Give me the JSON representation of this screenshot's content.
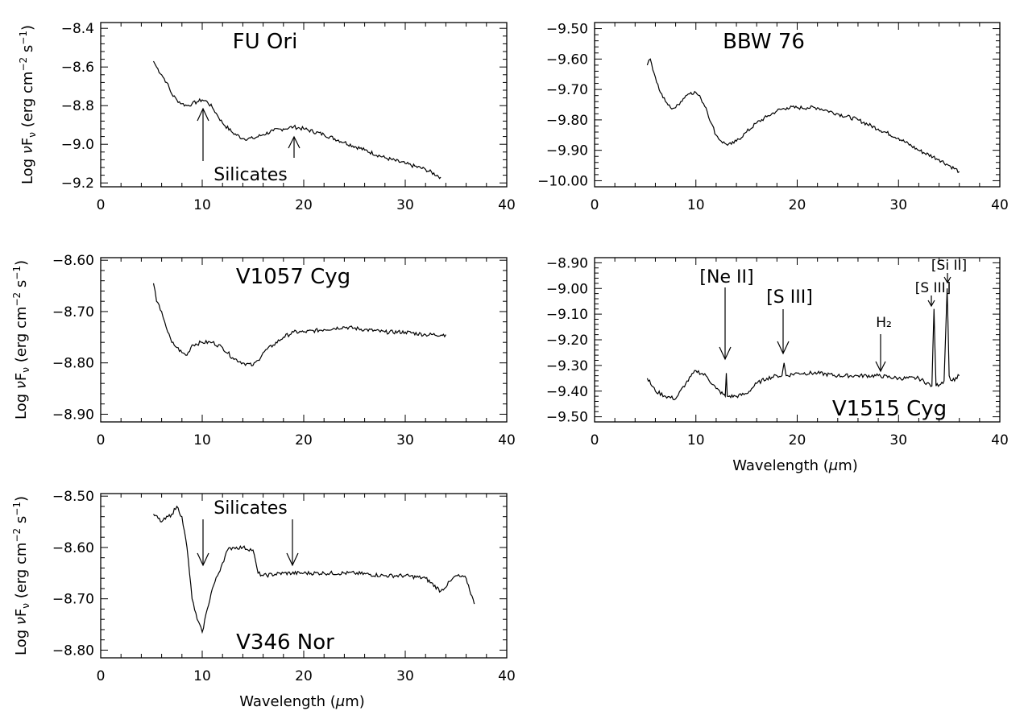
{
  "figure": {
    "xlabel_prefix": "Wavelength (",
    "xlabel_symbol": "μ",
    "xlabel_suffix": "m)",
    "ylabel_prefix": "Log ",
    "ylabel_nu": "ν",
    "ylabel_F": "F",
    "ylabel_sub": "ν",
    "ylabel_units_open": " (erg cm",
    "ylabel_exp1": "−2",
    "ylabel_units_mid": " s",
    "ylabel_exp2": "−1",
    "ylabel_units_close": ")"
  },
  "chart_data": [
    {
      "type": "line",
      "title": "FU Ori",
      "xlim": [
        0,
        40
      ],
      "ylim": [
        -9.22,
        -8.37
      ],
      "xticks": [
        0,
        10,
        20,
        30,
        40
      ],
      "yticks": [
        -9.2,
        -9.0,
        -8.8,
        -8.6,
        -8.4
      ],
      "ytick_labels": [
        "−9.2",
        "−9.0",
        "−8.8",
        "−8.6",
        "−8.4"
      ],
      "series": [
        {
          "x": [
            5.2,
            5.5,
            6.0,
            6.5,
            7.0,
            7.5,
            8.0,
            8.5,
            9.0,
            9.5,
            10.0,
            10.5,
            11.0,
            11.5,
            12.0,
            13.0,
            14.0,
            15.0,
            16.0,
            17.0,
            18.0,
            19.0,
            20.0,
            22.0,
            24.0,
            26.0,
            28.0,
            30.0,
            32.0,
            33.5
          ],
          "y": [
            -8.57,
            -8.6,
            -8.64,
            -8.68,
            -8.74,
            -8.77,
            -8.79,
            -8.8,
            -8.79,
            -8.78,
            -8.77,
            -8.78,
            -8.81,
            -8.85,
            -8.89,
            -8.94,
            -8.97,
            -8.97,
            -8.95,
            -8.93,
            -8.92,
            -8.91,
            -8.92,
            -8.95,
            -8.99,
            -9.03,
            -9.07,
            -9.1,
            -9.13,
            -9.17
          ]
        }
      ],
      "annotations": [
        {
          "text": "Silicates",
          "x": 14,
          "y": -9.16
        },
        {
          "text": "",
          "x": 10,
          "y": -8.82
        },
        {
          "text": "",
          "x": 19,
          "y": -8.94
        }
      ]
    },
    {
      "type": "line",
      "title": "BBW 76",
      "xlim": [
        0,
        40
      ],
      "ylim": [
        -10.02,
        -9.48
      ],
      "xticks": [
        0,
        10,
        20,
        30,
        40
      ],
      "yticks": [
        -10.0,
        -9.9,
        -9.8,
        -9.7,
        -9.6,
        -9.5
      ],
      "ytick_labels": [
        "−10.00",
        "−9.90",
        "−9.80",
        "−9.70",
        "−9.60",
        "−9.50"
      ],
      "series": [
        {
          "x": [
            5.2,
            5.5,
            6.0,
            6.5,
            7.0,
            7.5,
            8.0,
            8.5,
            9.0,
            9.5,
            10.0,
            10.5,
            11.0,
            11.5,
            12.0,
            12.5,
            13.0,
            13.5,
            14.0,
            15.0,
            16.0,
            17.0,
            18.0,
            19.0,
            20.0,
            21.0,
            22.0,
            23.0,
            24.0,
            26.0,
            28.0,
            30.0,
            32.0,
            34.0,
            35.0,
            36.0
          ],
          "y": [
            -9.62,
            -9.6,
            -9.66,
            -9.71,
            -9.74,
            -9.76,
            -9.76,
            -9.74,
            -9.72,
            -9.71,
            -9.71,
            -9.73,
            -9.76,
            -9.81,
            -9.85,
            -9.87,
            -9.88,
            -9.88,
            -9.87,
            -9.84,
            -9.81,
            -9.79,
            -9.77,
            -9.76,
            -9.76,
            -9.76,
            -9.76,
            -9.77,
            -9.78,
            -9.8,
            -9.83,
            -9.86,
            -9.9,
            -9.93,
            -9.95,
            -9.97
          ]
        }
      ]
    },
    {
      "type": "line",
      "title": "V1057 Cyg",
      "xlim": [
        0,
        40
      ],
      "ylim": [
        -8.915,
        -8.595
      ],
      "xticks": [
        0,
        10,
        20,
        30,
        40
      ],
      "yticks": [
        -8.9,
        -8.8,
        -8.7,
        -8.6
      ],
      "ytick_labels": [
        "−8.90",
        "−8.80",
        "−8.70",
        "−8.60"
      ],
      "series": [
        {
          "x": [
            5.2,
            5.5,
            6.0,
            6.3,
            6.6,
            7.0,
            7.5,
            8.0,
            8.5,
            9.0,
            10.0,
            11.0,
            12.0,
            13.0,
            14.0,
            15.0,
            15.5,
            16.0,
            17.0,
            18.0,
            19.0,
            20.0,
            22.0,
            24.0,
            26.0,
            28.0,
            30.0,
            32.0,
            34.0
          ],
          "y": [
            -8.645,
            -8.68,
            -8.7,
            -8.72,
            -8.74,
            -8.76,
            -8.77,
            -8.78,
            -8.785,
            -8.765,
            -8.76,
            -8.76,
            -8.77,
            -8.79,
            -8.8,
            -8.805,
            -8.795,
            -8.78,
            -8.765,
            -8.75,
            -8.74,
            -8.74,
            -8.735,
            -8.73,
            -8.735,
            -8.74,
            -8.74,
            -8.745,
            -8.745
          ]
        }
      ]
    },
    {
      "type": "line",
      "title": "V1515 Cyg",
      "xlim": [
        0,
        40
      ],
      "ylim": [
        -9.52,
        -8.88
      ],
      "xticks": [
        0,
        10,
        20,
        30,
        40
      ],
      "yticks": [
        -9.5,
        -9.4,
        -9.3,
        -9.2,
        -9.1,
        -9.0,
        -8.9
      ],
      "ytick_labels": [
        "−9.50",
        "−9.40",
        "−9.30",
        "−9.20",
        "−9.10",
        "−9.00",
        "−8.90"
      ],
      "series": [
        {
          "x": [
            5.2,
            6.0,
            7.0,
            8.0,
            9.0,
            10.0,
            11.0,
            12.0,
            12.9,
            13.0,
            13.1,
            14.0,
            15.0,
            16.0,
            17.0,
            18.0,
            18.5,
            18.7,
            18.9,
            20.0,
            22.0,
            24.0,
            26.0,
            28.0,
            30.0,
            32.0,
            33.3,
            33.5,
            33.7,
            34.5,
            34.8,
            35.0,
            35.3,
            36.0
          ],
          "y": [
            -9.35,
            -9.4,
            -9.42,
            -9.43,
            -9.37,
            -9.32,
            -9.34,
            -9.39,
            -9.42,
            -9.33,
            -9.42,
            -9.42,
            -9.41,
            -9.37,
            -9.35,
            -9.34,
            -9.34,
            -9.29,
            -9.34,
            -9.33,
            -9.33,
            -9.34,
            -9.34,
            -9.34,
            -9.35,
            -9.35,
            -9.38,
            -9.08,
            -9.38,
            -9.36,
            -9.0,
            -9.34,
            -9.36,
            -9.34
          ]
        }
      ],
      "annotations": [
        {
          "text": "[Ne II]",
          "x": 12.8,
          "y": -8.95
        },
        {
          "text": "[S III]",
          "x": 18.7,
          "y": -9.05
        },
        {
          "text": "H₂",
          "x": 28.2,
          "y": -9.18
        },
        {
          "text": "[S III]",
          "x": 33.5,
          "y": -9.02
        },
        {
          "text": "[Si II]",
          "x": 34.8,
          "y": -8.92
        }
      ]
    },
    {
      "type": "line",
      "title": "V346 Nor",
      "xlim": [
        0,
        40
      ],
      "ylim": [
        -8.815,
        -8.495
      ],
      "xticks": [
        0,
        10,
        20,
        30,
        40
      ],
      "yticks": [
        -8.8,
        -8.7,
        -8.6,
        -8.5
      ],
      "ytick_labels": [
        "−8.80",
        "−8.70",
        "−8.60",
        "−8.50"
      ],
      "series": [
        {
          "x": [
            5.2,
            6.0,
            7.0,
            7.5,
            8.0,
            8.5,
            9.0,
            9.5,
            10.0,
            10.5,
            11.0,
            12.0,
            12.5,
            13.0,
            14.0,
            15.0,
            15.5,
            16.0,
            18.0,
            20.0,
            22.0,
            25.0,
            28.0,
            30.0,
            32.0,
            33.5,
            34.5,
            35.0,
            36.0,
            36.8
          ],
          "y": [
            -8.535,
            -8.55,
            -8.535,
            -8.52,
            -8.54,
            -8.6,
            -8.7,
            -8.74,
            -8.765,
            -8.72,
            -8.68,
            -8.63,
            -8.605,
            -8.6,
            -8.6,
            -8.605,
            -8.65,
            -8.655,
            -8.65,
            -8.65,
            -8.65,
            -8.65,
            -8.655,
            -8.655,
            -8.66,
            -8.685,
            -8.665,
            -8.655,
            -8.66,
            -8.71
          ]
        }
      ],
      "annotations": [
        {
          "text": "Silicates",
          "x": 14,
          "y": -8.54
        },
        {
          "text": "",
          "x": 10,
          "y": -8.64
        },
        {
          "text": "",
          "x": 19,
          "y": -8.64
        }
      ]
    }
  ]
}
